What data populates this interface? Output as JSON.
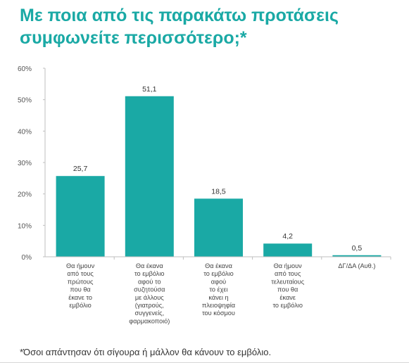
{
  "header": {
    "title": "Με ποια από τις παρακάτω προτάσεις\nσυμφωνείτε περισσότερο;*"
  },
  "footnote": "*Όσοι απάντησαν ότι σίγουρα ή μάλλον θα κάνουν το εμβόλιο.",
  "colors": {
    "bar": "#1aa9a5",
    "title": "#1aa9a5",
    "axis_text": "#555555",
    "category_text": "#444444",
    "axis_line": "#bfbfbf"
  },
  "chart_data": {
    "type": "bar",
    "title": "Με ποια από τις παρακάτω προτάσεις συμφωνείτε περισσότερο;*",
    "xlabel": "",
    "ylabel": "",
    "ylim": [
      0,
      60
    ],
    "yticks": [
      "0%",
      "10%",
      "20%",
      "30%",
      "40%",
      "50%",
      "60%"
    ],
    "grid": false,
    "categories": [
      [
        "Θα ήμουν",
        "από τους",
        "πρώτους",
        "που θα",
        "έκανε το",
        "εμβόλιο"
      ],
      [
        "Θα έκανα",
        "το εμβόλιο",
        "αφού το",
        "συζητούσα",
        "με άλλους",
        "(γιατρούς,",
        "συγγενείς,",
        "φαρμακοποιό)"
      ],
      [
        "Θα έκανα",
        "το εμβόλιο",
        "αφού",
        "το έχει",
        "κάνει η",
        "πλειοψηφία",
        "του κόσμου"
      ],
      [
        "Θα ήμουν",
        "από τους",
        "τελευταίους",
        "που θα",
        "έκανε",
        "το εμβόλιο"
      ],
      [
        "ΔΓ/ΔΑ (Αυθ.)"
      ]
    ],
    "values": [
      25.7,
      51.1,
      18.5,
      4.2,
      0.5
    ],
    "value_labels": [
      "25,7",
      "51,1",
      "18,5",
      "4,2",
      "0,5"
    ]
  }
}
